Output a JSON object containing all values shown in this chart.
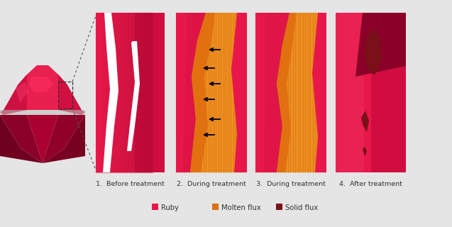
{
  "bg_color": "#e5e5e5",
  "ruby_color": "#e8174a",
  "ruby_dark": "#b00030",
  "ruby_deeper": "#8a0028",
  "ruby_mid": "#cc1040",
  "ruby_light": "#f04070",
  "ruby_bright": "#ff2060",
  "molten_color": "#e07010",
  "molten_light": "#f09020",
  "solid_flux_color": "#7a1018",
  "white_crack": "#ffffff",
  "panel_labels": [
    "1.  Before treatment",
    "2.  During treatment",
    "3.  During treatment",
    "4.  After treatment"
  ],
  "legend_items": [
    {
      "label": "Ruby",
      "color": "#e8174a"
    },
    {
      "label": "Molten flux",
      "color": "#e07010"
    },
    {
      "label": "Solid flux",
      "color": "#7a1018"
    }
  ],
  "fig_width": 6.37,
  "fig_height": 3.2,
  "dpi": 100
}
